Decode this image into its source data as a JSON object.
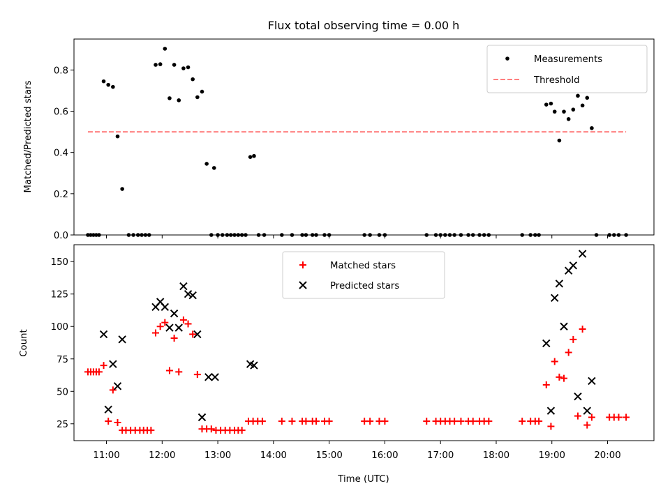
{
  "title": "Flux total observing time = 0.00 h",
  "chart_data": [
    {
      "type": "scatter",
      "ylabel": "Matched/Predicted stars",
      "ylim": [
        0,
        0.95
      ],
      "yticks": [
        0.0,
        0.2,
        0.4,
        0.6,
        0.8
      ],
      "ytick_labels": [
        "0.0",
        "0.2",
        "0.4",
        "0.6",
        "0.8"
      ],
      "xlim": [
        "10:25",
        "20:50"
      ],
      "legend_position": "upper right",
      "series": [
        {
          "name": "Measurements",
          "marker": "dot",
          "color": "#000000",
          "points": [
            [
              "10:40",
              0.0
            ],
            [
              "10:43",
              0.0
            ],
            [
              "10:46",
              0.0
            ],
            [
              "10:49",
              0.0
            ],
            [
              "10:52",
              0.0
            ],
            [
              "10:57",
              0.745
            ],
            [
              "11:02",
              0.728
            ],
            [
              "11:07",
              0.718
            ],
            [
              "11:12",
              0.478
            ],
            [
              "11:17",
              0.223
            ],
            [
              "11:24",
              0.0
            ],
            [
              "11:29",
              0.0
            ],
            [
              "11:34",
              0.0
            ],
            [
              "11:38",
              0.0
            ],
            [
              "11:42",
              0.0
            ],
            [
              "11:46",
              0.0
            ],
            [
              "11:53",
              0.825
            ],
            [
              "11:58",
              0.828
            ],
            [
              "12:03",
              0.903
            ],
            [
              "12:08",
              0.663
            ],
            [
              "12:13",
              0.825
            ],
            [
              "12:18",
              0.653
            ],
            [
              "12:23",
              0.808
            ],
            [
              "12:28",
              0.813
            ],
            [
              "12:33",
              0.755
            ],
            [
              "12:38",
              0.668
            ],
            [
              "12:43",
              0.695
            ],
            [
              "12:48",
              0.345
            ],
            [
              "12:56",
              0.325
            ],
            [
              "12:53",
              0.0
            ],
            [
              "13:00",
              0.0
            ],
            [
              "13:05",
              0.0
            ],
            [
              "13:10",
              0.0
            ],
            [
              "13:14",
              0.0
            ],
            [
              "13:18",
              0.0
            ],
            [
              "13:22",
              0.0
            ],
            [
              "13:26",
              0.0
            ],
            [
              "13:30",
              0.0
            ],
            [
              "13:35",
              0.378
            ],
            [
              "13:39",
              0.383
            ],
            [
              "13:44",
              0.0
            ],
            [
              "13:50",
              0.0
            ],
            [
              "14:09",
              0.0
            ],
            [
              "14:20",
              0.0
            ],
            [
              "14:31",
              0.0
            ],
            [
              "14:35",
              0.0
            ],
            [
              "14:42",
              0.0
            ],
            [
              "14:46",
              0.0
            ],
            [
              "14:55",
              0.0
            ],
            [
              "15:00",
              0.0
            ],
            [
              "15:38",
              0.0
            ],
            [
              "15:44",
              0.0
            ],
            [
              "15:54",
              0.0
            ],
            [
              "16:00",
              0.0
            ],
            [
              "16:45",
              0.0
            ],
            [
              "16:55",
              0.0
            ],
            [
              "17:00",
              0.0
            ],
            [
              "17:05",
              0.0
            ],
            [
              "17:10",
              0.0
            ],
            [
              "17:15",
              0.0
            ],
            [
              "17:22",
              0.0
            ],
            [
              "17:30",
              0.0
            ],
            [
              "17:35",
              0.0
            ],
            [
              "17:42",
              0.0
            ],
            [
              "17:47",
              0.0
            ],
            [
              "17:52",
              0.0
            ],
            [
              "18:28",
              0.0
            ],
            [
              "18:37",
              0.0
            ],
            [
              "18:42",
              0.0
            ],
            [
              "18:46",
              0.0
            ],
            [
              "18:54",
              0.632
            ],
            [
              "18:59",
              0.637
            ],
            [
              "19:03",
              0.598
            ],
            [
              "19:08",
              0.458
            ],
            [
              "19:13",
              0.598
            ],
            [
              "19:18",
              0.562
            ],
            [
              "19:23",
              0.608
            ],
            [
              "19:28",
              0.675
            ],
            [
              "19:33",
              0.628
            ],
            [
              "19:38",
              0.665
            ],
            [
              "19:43",
              0.518
            ],
            [
              "19:48",
              0.0
            ],
            [
              "20:02",
              0.0
            ],
            [
              "20:07",
              0.0
            ],
            [
              "20:12",
              0.0
            ],
            [
              "20:20",
              0.0
            ]
          ]
        },
        {
          "name": "Threshold",
          "marker": "dashed-line",
          "color": "#ff7f7f",
          "points": [
            [
              "10:40",
              0.5
            ],
            [
              "20:20",
              0.5
            ]
          ]
        }
      ]
    },
    {
      "type": "scatter",
      "xlabel": "Time (UTC)",
      "ylabel": "Count",
      "ylim": [
        12,
        163
      ],
      "yticks": [
        25,
        50,
        75,
        100,
        125,
        150
      ],
      "ytick_labels": [
        "25",
        "50",
        "75",
        "100",
        "125",
        "150"
      ],
      "xlim": [
        "10:25",
        "20:50"
      ],
      "xticks": [
        "11:00",
        "12:00",
        "13:00",
        "14:00",
        "15:00",
        "16:00",
        "17:00",
        "18:00",
        "19:00",
        "20:00"
      ],
      "xtick_labels": [
        "11:00",
        "12:00",
        "13:00",
        "14:00",
        "15:00",
        "16:00",
        "17:00",
        "18:00",
        "19:00",
        "20:00"
      ],
      "legend_position": "upper center",
      "series": [
        {
          "name": "Matched stars",
          "marker": "plus",
          "color": "#ff0000",
          "points": [
            [
              "10:40",
              65
            ],
            [
              "10:43",
              65
            ],
            [
              "10:46",
              65
            ],
            [
              "10:49",
              65
            ],
            [
              "10:52",
              65
            ],
            [
              "10:57",
              70
            ],
            [
              "11:02",
              27
            ],
            [
              "11:07",
              51
            ],
            [
              "11:12",
              26
            ],
            [
              "11:17",
              20
            ],
            [
              "11:21",
              20
            ],
            [
              "11:26",
              20
            ],
            [
              "11:31",
              20
            ],
            [
              "11:36",
              20
            ],
            [
              "11:40",
              20
            ],
            [
              "11:44",
              20
            ],
            [
              "11:48",
              20
            ],
            [
              "11:53",
              95
            ],
            [
              "11:58",
              100
            ],
            [
              "12:03",
              103
            ],
            [
              "12:08",
              66
            ],
            [
              "12:13",
              91
            ],
            [
              "12:18",
              65
            ],
            [
              "12:23",
              105
            ],
            [
              "12:28",
              102
            ],
            [
              "12:33",
              94
            ],
            [
              "12:38",
              63
            ],
            [
              "12:43",
              21
            ],
            [
              "12:48",
              21
            ],
            [
              "12:53",
              21
            ],
            [
              "12:58",
              20
            ],
            [
              "13:03",
              20
            ],
            [
              "13:08",
              20
            ],
            [
              "13:13",
              20
            ],
            [
              "13:18",
              20
            ],
            [
              "13:22",
              20
            ],
            [
              "13:26",
              20
            ],
            [
              "13:33",
              27
            ],
            [
              "13:38",
              27
            ],
            [
              "13:43",
              27
            ],
            [
              "13:48",
              27
            ],
            [
              "14:09",
              27
            ],
            [
              "14:20",
              27
            ],
            [
              "14:31",
              27
            ],
            [
              "14:35",
              27
            ],
            [
              "14:42",
              27
            ],
            [
              "14:46",
              27
            ],
            [
              "14:55",
              27
            ],
            [
              "15:00",
              27
            ],
            [
              "15:38",
              27
            ],
            [
              "15:44",
              27
            ],
            [
              "15:54",
              27
            ],
            [
              "16:00",
              27
            ],
            [
              "16:45",
              27
            ],
            [
              "16:55",
              27
            ],
            [
              "17:00",
              27
            ],
            [
              "17:05",
              27
            ],
            [
              "17:10",
              27
            ],
            [
              "17:15",
              27
            ],
            [
              "17:22",
              27
            ],
            [
              "17:30",
              27
            ],
            [
              "17:35",
              27
            ],
            [
              "17:42",
              27
            ],
            [
              "17:47",
              27
            ],
            [
              "17:52",
              27
            ],
            [
              "18:28",
              27
            ],
            [
              "18:37",
              27
            ],
            [
              "18:42",
              27
            ],
            [
              "18:46",
              27
            ],
            [
              "18:54",
              55
            ],
            [
              "18:59",
              23
            ],
            [
              "19:03",
              73
            ],
            [
              "19:08",
              61
            ],
            [
              "19:13",
              60
            ],
            [
              "19:18",
              80
            ],
            [
              "19:23",
              90
            ],
            [
              "19:28",
              31
            ],
            [
              "19:33",
              98
            ],
            [
              "19:38",
              24
            ],
            [
              "19:43",
              30
            ],
            [
              "20:02",
              30
            ],
            [
              "20:07",
              30
            ],
            [
              "20:12",
              30
            ],
            [
              "20:20",
              30
            ]
          ]
        },
        {
          "name": "Predicted stars",
          "marker": "x",
          "color": "#000000",
          "points": [
            [
              "10:57",
              94
            ],
            [
              "11:02",
              36
            ],
            [
              "11:07",
              71
            ],
            [
              "11:12",
              54
            ],
            [
              "11:17",
              90
            ],
            [
              "11:53",
              115
            ],
            [
              "11:58",
              119
            ],
            [
              "12:03",
              115
            ],
            [
              "12:08",
              99
            ],
            [
              "12:13",
              110
            ],
            [
              "12:18",
              99
            ],
            [
              "12:23",
              131
            ],
            [
              "12:28",
              125
            ],
            [
              "12:33",
              124
            ],
            [
              "12:38",
              94
            ],
            [
              "12:43",
              30
            ],
            [
              "12:50",
              61
            ],
            [
              "12:57",
              61
            ],
            [
              "13:35",
              71
            ],
            [
              "13:39",
              70
            ],
            [
              "18:54",
              87
            ],
            [
              "18:59",
              35
            ],
            [
              "19:03",
              122
            ],
            [
              "19:08",
              133
            ],
            [
              "19:13",
              100
            ],
            [
              "19:18",
              143
            ],
            [
              "19:23",
              147
            ],
            [
              "19:28",
              46
            ],
            [
              "19:33",
              156
            ],
            [
              "19:38",
              35
            ],
            [
              "19:43",
              58
            ]
          ]
        }
      ]
    }
  ]
}
